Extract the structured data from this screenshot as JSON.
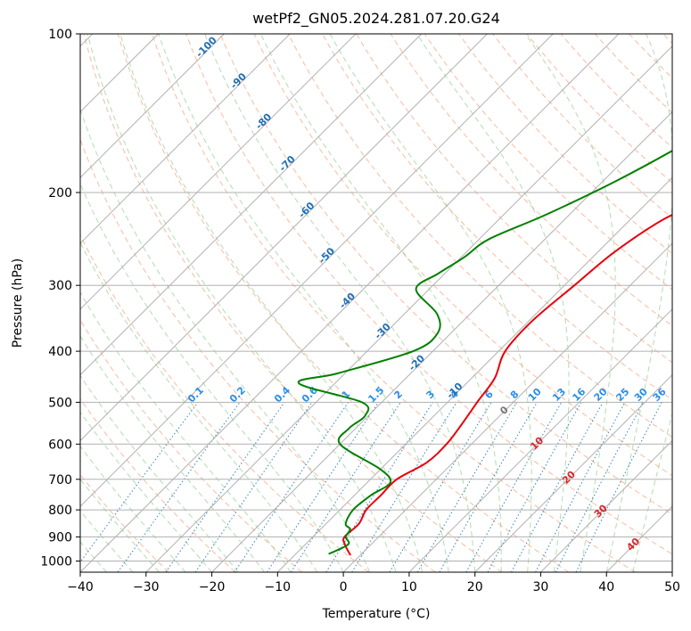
{
  "chart_data": {
    "type": "line",
    "subtype": "skew-T log-P diagram",
    "title": "wetPf2_GN05.2024.281.07.20.G24",
    "xlabel": "Temperature (°C)",
    "ylabel": "Pressure (hPa)",
    "xlim": [
      -40,
      50
    ],
    "ylim": [
      1050,
      100
    ],
    "y_scale": "log",
    "grid": true,
    "x_ticks": [
      "−40",
      "−30",
      "−20",
      "−10",
      "0",
      "10",
      "20",
      "30",
      "40",
      "50"
    ],
    "y_ticks": [
      "100",
      "200",
      "300",
      "400",
      "500",
      "600",
      "700",
      "800",
      "900",
      "1000"
    ],
    "series": [
      {
        "name": "",
        "role": "temperature",
        "color": "#e8000b",
        "points": [
          [
            -1.5,
            975
          ],
          [
            -4.0,
            930
          ],
          [
            -5.2,
            900
          ],
          [
            -5.0,
            850
          ],
          [
            -6.0,
            800
          ],
          [
            -6.0,
            750
          ],
          [
            -6.0,
            700
          ],
          [
            -4.0,
            650
          ],
          [
            -3.8,
            600
          ],
          [
            -4.5,
            550
          ],
          [
            -5.5,
            500
          ],
          [
            -6.5,
            450
          ],
          [
            -9.0,
            400
          ],
          [
            -9.5,
            350
          ],
          [
            -8.5,
            300
          ],
          [
            -7.5,
            260
          ],
          [
            -5.0,
            225
          ],
          [
            -0.5,
            200
          ],
          [
            3.0,
            175
          ],
          [
            6.5,
            150
          ],
          [
            9.0,
            130
          ],
          [
            9.5,
            120
          ],
          [
            10.0,
            110
          ],
          [
            10.0,
            100
          ]
        ]
      },
      {
        "name": "",
        "role": "dewpoint",
        "color": "#008000",
        "points": [
          [
            -5.0,
            970
          ],
          [
            -3.5,
            930
          ],
          [
            -5.0,
            900
          ],
          [
            -5.5,
            870
          ],
          [
            -7.0,
            850
          ],
          [
            -8.0,
            800
          ],
          [
            -7.5,
            750
          ],
          [
            -6.5,
            710
          ],
          [
            -10.0,
            670
          ],
          [
            -20.0,
            600
          ],
          [
            -21.0,
            560
          ],
          [
            -20.5,
            530
          ],
          [
            -23.0,
            500
          ],
          [
            -35.5,
            460
          ],
          [
            -31.0,
            440
          ],
          [
            -23.0,
            400
          ],
          [
            -22.0,
            370
          ],
          [
            -25.0,
            340
          ],
          [
            -32.0,
            305
          ],
          [
            -31.0,
            285
          ],
          [
            -29.5,
            265
          ],
          [
            -28.5,
            245
          ],
          [
            -23.5,
            220
          ],
          [
            -18.0,
            190
          ],
          [
            -13.0,
            160
          ],
          [
            -9.0,
            135
          ],
          [
            -3.5,
            115
          ],
          [
            -0.5,
            100
          ]
        ]
      }
    ],
    "mixing_ratio_labels": [
      "0.1",
      "0.2",
      "0.4",
      "0.6",
      "1",
      "1.5",
      "2",
      "3",
      "4",
      "6",
      "8",
      "10",
      "13",
      "16",
      "20",
      "25",
      "30",
      "36"
    ],
    "isotherm_labels_blue": [
      "-100",
      "-90",
      "-80",
      "-70",
      "-60",
      "-50",
      "-40",
      "-30",
      "-20",
      "-10"
    ],
    "isotherm_labels_red": [
      "0",
      "10",
      "20",
      "30",
      "40"
    ],
    "colors": {
      "temperature": "#e8000b",
      "dewpoint": "#008000",
      "isotherm": "#a0a0a0",
      "dry_adiabat": "#f4a582",
      "moist_adiabat": "#9fd39f",
      "mixing_ratio": "#1f77b4",
      "mixing_ratio_label": "#2a8ee8",
      "cold_label": "#1f6fb4",
      "warm_label": "#d62728",
      "grid": "#b0b0b0"
    }
  }
}
